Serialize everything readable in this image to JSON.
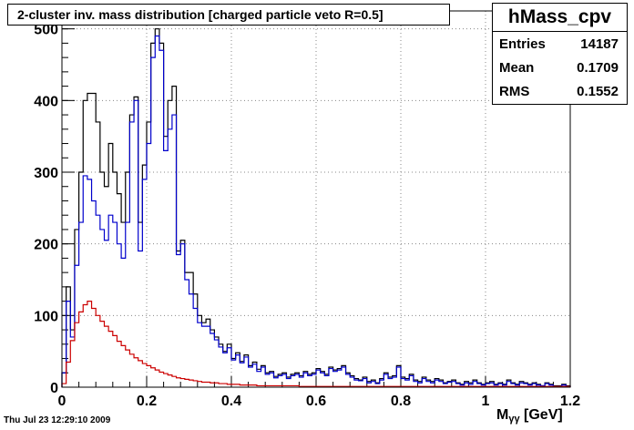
{
  "stats": {
    "name": "hMass_cpv",
    "entries_label": "Entries",
    "entries": "14187",
    "mean_label": "Mean",
    "mean": "0.1709",
    "rms_label": "RMS",
    "rms": "0.1552"
  },
  "timestamp": "Thu Jul 23 12:29:10 2009",
  "colors": {
    "black": "#000000",
    "blue": "#0000cc",
    "red": "#cc0000",
    "grid": "#888888"
  },
  "chart_data": {
    "type": "line",
    "title": "2-cluster inv. mass distribution [charged particle veto R=0.5]",
    "xlabel_main": "M",
    "xlabel_sub": "γγ",
    "xlabel_unit": "[GeV]",
    "ylabel": "",
    "xlim": [
      0,
      1.2
    ],
    "ylim": [
      0,
      525
    ],
    "x_ticks": [
      "0",
      "0.2",
      "0.4",
      "0.6",
      "0.8",
      "1",
      "1.2"
    ],
    "y_ticks": [
      "0",
      "100",
      "200",
      "300",
      "400",
      "500"
    ],
    "grid": true,
    "bin_width": 0.01,
    "bins": 120,
    "series": [
      {
        "color": "black",
        "values": [
          20,
          140,
          80,
          220,
          300,
          400,
          410,
          410,
          370,
          300,
          280,
          340,
          300,
          270,
          230,
          300,
          380,
          405,
          230,
          310,
          370,
          480,
          500,
          480,
          350,
          400,
          420,
          190,
          205,
          160,
          160,
          130,
          100,
          90,
          95,
          80,
          70,
          60,
          50,
          60,
          40,
          48,
          36,
          45,
          30,
          35,
          25,
          30,
          20,
          22,
          15,
          18,
          20,
          14,
          18,
          20,
          16,
          22,
          18,
          20,
          26,
          22,
          18,
          28,
          24,
          26,
          30,
          20,
          16,
          12,
          10,
          14,
          8,
          10,
          6,
          12,
          20,
          14,
          16,
          30,
          14,
          12,
          18,
          10,
          8,
          14,
          10,
          8,
          12,
          10,
          6,
          8,
          10,
          6,
          4,
          8,
          6,
          10,
          6,
          4,
          6,
          8,
          4,
          6,
          4,
          10,
          6,
          4,
          8,
          6,
          4,
          6,
          4,
          2,
          6,
          4,
          2,
          2,
          4,
          2
        ]
      },
      {
        "color": "blue",
        "values": [
          20,
          120,
          70,
          170,
          230,
          295,
          290,
          260,
          240,
          220,
          205,
          240,
          230,
          200,
          180,
          230,
          370,
          400,
          190,
          290,
          340,
          460,
          490,
          470,
          330,
          360,
          380,
          185,
          200,
          150,
          130,
          110,
          90,
          85,
          85,
          75,
          66,
          56,
          48,
          55,
          38,
          45,
          34,
          42,
          28,
          32,
          22,
          28,
          18,
          20,
          13,
          16,
          18,
          12,
          16,
          18,
          14,
          20,
          16,
          18,
          24,
          20,
          16,
          26,
          22,
          24,
          28,
          18,
          14,
          10,
          9,
          12,
          6,
          8,
          5,
          10,
          18,
          12,
          14,
          28,
          12,
          10,
          16,
          8,
          6,
          12,
          8,
          6,
          10,
          8,
          5,
          7,
          8,
          5,
          3,
          6,
          4,
          8,
          5,
          3,
          5,
          6,
          3,
          5,
          3,
          8,
          5,
          3,
          6,
          5,
          3,
          5,
          3,
          2,
          5,
          3,
          1,
          1,
          3,
          1
        ]
      },
      {
        "color": "red",
        "values": [
          5,
          35,
          65,
          90,
          105,
          115,
          120,
          110,
          100,
          92,
          85,
          78,
          72,
          64,
          58,
          52,
          46,
          41,
          37,
          33,
          30,
          27,
          24,
          21,
          19,
          17,
          15,
          13,
          12,
          11,
          10,
          9,
          8,
          7,
          7,
          6,
          6,
          5,
          5,
          4,
          4,
          4,
          3,
          3,
          3,
          3,
          2,
          2,
          2,
          2,
          2,
          2,
          2,
          2,
          2,
          2,
          1,
          1,
          1,
          1,
          1,
          1,
          1,
          1,
          1,
          1,
          1,
          1,
          1,
          1,
          1,
          1,
          1,
          1,
          1,
          1,
          1,
          1,
          1,
          1,
          1,
          1,
          1,
          1,
          1,
          1,
          1,
          1,
          1,
          1,
          1,
          1,
          1,
          1,
          1,
          1,
          1,
          1,
          1,
          1,
          1,
          1,
          1,
          1,
          1,
          1,
          1,
          1,
          1,
          1,
          1,
          1,
          1,
          1,
          1,
          1,
          1,
          1,
          1,
          1
        ]
      }
    ]
  }
}
